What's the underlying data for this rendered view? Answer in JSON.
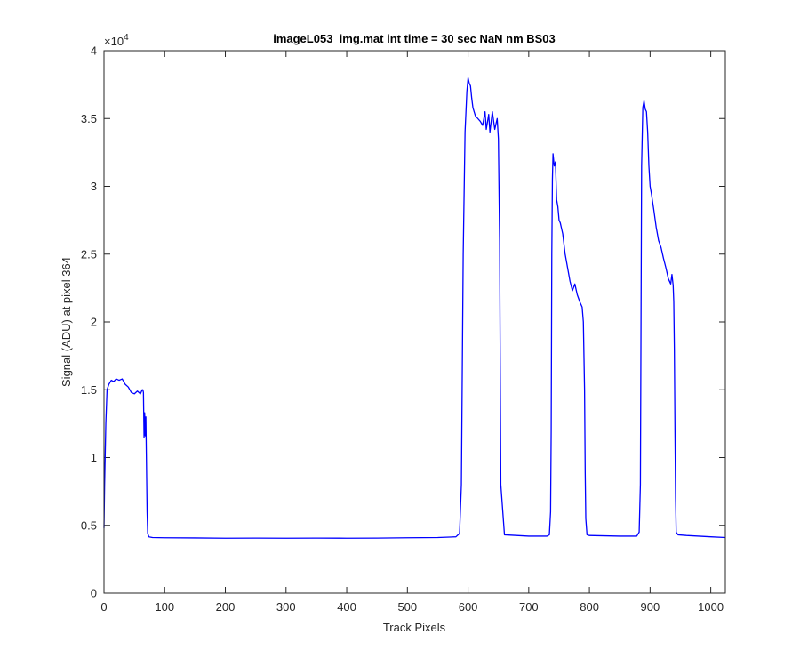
{
  "chart_data": {
    "type": "line",
    "title": "imageL053_img.mat int time = 30 sec  NaN nm BS03",
    "xlabel": "Track Pixels",
    "ylabel": "Signal (ADU) at pixel 364",
    "y_multiplier_label": "×10",
    "y_multiplier_exponent": "4",
    "xlim": [
      0,
      1024
    ],
    "ylim": [
      0,
      40000
    ],
    "xticks": [
      0,
      100,
      200,
      300,
      400,
      500,
      600,
      700,
      800,
      900,
      1000
    ],
    "xtick_labels": [
      "0",
      "100",
      "200",
      "300",
      "400",
      "500",
      "600",
      "700",
      "800",
      "900",
      "1000"
    ],
    "yticks": [
      0,
      5000,
      10000,
      15000,
      20000,
      25000,
      30000,
      35000,
      40000
    ],
    "ytick_labels": [
      "0",
      "0.5",
      "1",
      "1.5",
      "2",
      "2.5",
      "3",
      "3.5",
      "4"
    ],
    "grid": false,
    "box": true,
    "series_color": "#0000ff",
    "series": [
      {
        "x": [
          0,
          1,
          3,
          5,
          8,
          12,
          16,
          20,
          25,
          30,
          35,
          40,
          45,
          50,
          55,
          60,
          63,
          64,
          65,
          66,
          67,
          68,
          69,
          70,
          71,
          72,
          74,
          80,
          100,
          150,
          200,
          250,
          300,
          350,
          400,
          450,
          500,
          550,
          580,
          586,
          589,
          592,
          595,
          598,
          600,
          602,
          604,
          606,
          608,
          612,
          616,
          620,
          624,
          628,
          630,
          634,
          636,
          640,
          644,
          648,
          650,
          652,
          654,
          660,
          700,
          730,
          734,
          736,
          737,
          738,
          739,
          740,
          742,
          744,
          746,
          748,
          750,
          752,
          756,
          760,
          764,
          768,
          772,
          776,
          780,
          784,
          788,
          790,
          792,
          793,
          794,
          796,
          800,
          850,
          878,
          882,
          884,
          885,
          886,
          888,
          890,
          892,
          894,
          896,
          898,
          900,
          902,
          906,
          910,
          914,
          918,
          922,
          926,
          930,
          934,
          936,
          938,
          939,
          940,
          941,
          942,
          943,
          946,
          960,
          1000,
          1024
        ],
        "y": [
          4800,
          8000,
          12500,
          15000,
          15400,
          15700,
          15600,
          15800,
          15700,
          15800,
          15400,
          15200,
          14800,
          14700,
          14900,
          14700,
          15000,
          15000,
          14800,
          11500,
          13300,
          11600,
          13000,
          9500,
          6000,
          4400,
          4150,
          4100,
          4080,
          4070,
          4050,
          4060,
          4050,
          4060,
          4050,
          4060,
          4080,
          4100,
          4150,
          4400,
          8000,
          25000,
          34000,
          37000,
          38000,
          37600,
          37400,
          36500,
          35800,
          35200,
          35000,
          34800,
          34500,
          35500,
          34200,
          35300,
          34000,
          35500,
          34200,
          35000,
          33500,
          26000,
          8000,
          4300,
          4200,
          4200,
          4300,
          6000,
          12000,
          25000,
          30500,
          32400,
          31500,
          31800,
          29000,
          28500,
          27500,
          27300,
          26500,
          25000,
          24000,
          23000,
          22300,
          22800,
          22000,
          21500,
          21100,
          20000,
          15000,
          9000,
          5500,
          4300,
          4250,
          4200,
          4200,
          4500,
          8000,
          20000,
          31500,
          35800,
          36300,
          35700,
          35500,
          34000,
          31500,
          30000,
          29500,
          28300,
          27000,
          26000,
          25500,
          24700,
          24000,
          23200,
          22800,
          23500,
          22700,
          21500,
          18000,
          12000,
          7000,
          4500,
          4300,
          4250,
          4150,
          4100
        ]
      }
    ]
  }
}
